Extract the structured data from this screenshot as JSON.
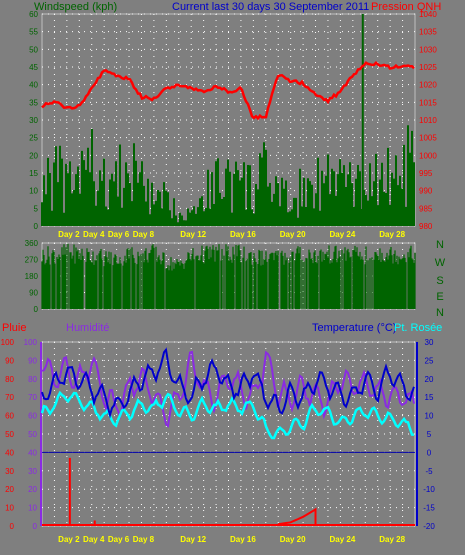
{
  "header": {
    "left_label": "Windspeed (kph)",
    "center_label": "Current last 30 days 30 September 2011",
    "right_label": "Pression QNH"
  },
  "lower_header": {
    "rain_label": "Pluie",
    "humidity_label": "Humidité",
    "temp_label": "Temperature (°C)",
    "dew_label": "Pt. Rosée"
  },
  "colors": {
    "background": "#7f7f7f",
    "wind": "#006400",
    "wind_direction": "#006400",
    "pressure": "#ff0000",
    "humidity": "#8a2be2",
    "temperature": "#0000cc",
    "dewpoint": "#00ffff",
    "rain": "#ff0000",
    "x_labels": "#ffff00",
    "grid": "#ffffff"
  },
  "chart_data": [
    {
      "type": "line",
      "name": "wind-pressure",
      "x_days": [
        0,
        1,
        2,
        3,
        4,
        5,
        6,
        7,
        8,
        9,
        10,
        11,
        12,
        13,
        14,
        15,
        16,
        17,
        18,
        19,
        20,
        21,
        22,
        23,
        24,
        25,
        26,
        27,
        28,
        29,
        30
      ],
      "x_tick_labels": [
        "Day 2",
        "Day 4",
        "Day 6",
        "Day 8",
        "Day 12",
        "Day 16",
        "Day 20",
        "Day 24",
        "Day 28"
      ],
      "x_tick_days": [
        2,
        4,
        6,
        8,
        12,
        16,
        20,
        24,
        28
      ],
      "left_axis": {
        "label": "Windspeed (kph)",
        "ylim": [
          0,
          60
        ],
        "ticks": [
          0,
          5,
          10,
          15,
          20,
          25,
          30,
          35,
          40,
          45,
          50,
          55,
          60
        ]
      },
      "right_axis": {
        "label": "Pression QNH",
        "ylim": [
          980,
          1040
        ],
        "ticks": [
          980,
          985,
          990,
          995,
          1000,
          1005,
          1010,
          1015,
          1020,
          1025,
          1030,
          1035,
          1040
        ]
      },
      "series": [
        {
          "kind": "wind_gust_bars",
          "axis": "left",
          "values": [
            22,
            27,
            18,
            25,
            30,
            20,
            24,
            22,
            29,
            10,
            13,
            6,
            9,
            15,
            22,
            23,
            20,
            18,
            25,
            15,
            12,
            18,
            24,
            22,
            25,
            17,
            20,
            25,
            22,
            28,
            30
          ]
        },
        {
          "kind": "pressure_line",
          "axis": "right",
          "values": [
            1014,
            1015,
            1013.5,
            1014,
            1019,
            1024,
            1022.5,
            1021.5,
            1016.5,
            1016,
            1019,
            1020,
            1019,
            1018,
            1019.5,
            1018,
            1019,
            1010.5,
            1011,
            1023,
            1021,
            1020.5,
            1017,
            1015.5,
            1018,
            1022.5,
            1026,
            1026,
            1025,
            1025,
            1025
          ]
        }
      ]
    },
    {
      "type": "bar",
      "name": "wind-direction",
      "y_ticks": [
        0,
        90,
        180,
        270,
        360
      ],
      "ylim": [
        0,
        360
      ],
      "direction_labels": [
        "N",
        "W",
        "S",
        "E",
        "N"
      ],
      "values": [
        340,
        350,
        360,
        350,
        340,
        330,
        320,
        350,
        340,
        360,
        300,
        280,
        340,
        350,
        360,
        355,
        350,
        340,
        320,
        330,
        350,
        360,
        340,
        350,
        345,
        350,
        340,
        360,
        350,
        345,
        350
      ]
    },
    {
      "type": "line",
      "name": "humidity-temp",
      "x_tick_labels": [
        "Day 2",
        "Day 4",
        "Day 6",
        "Day 8",
        "Day 12",
        "Day 16",
        "Day 20",
        "Day 24",
        "Day 28"
      ],
      "x_tick_days": [
        2,
        4,
        6,
        8,
        12,
        16,
        20,
        24,
        28
      ],
      "left_axis_rain": {
        "label": "Pluie",
        "ylim": [
          0,
          100
        ],
        "ticks": [
          0,
          10,
          20,
          30,
          40,
          50,
          60,
          70,
          80,
          90,
          100
        ]
      },
      "left_axis_humidity": {
        "label": "Humidité",
        "ylim": [
          0,
          100
        ],
        "ticks": [
          0,
          10,
          20,
          30,
          40,
          50,
          60,
          70,
          80,
          90,
          100
        ]
      },
      "right_axis": {
        "label": "Temperature (°C)",
        "ylim": [
          -20,
          30
        ],
        "ticks": [
          -20,
          -15,
          -10,
          -5,
          0,
          5,
          10,
          15,
          20,
          25,
          30
        ]
      },
      "zero_line": 0,
      "series": [
        {
          "name": "Humidité",
          "axis": "humidity",
          "values": [
            88,
            80,
            85,
            78,
            90,
            70,
            65,
            75,
            80,
            72,
            60,
            70,
            88,
            75,
            70,
            82,
            75,
            68,
            92,
            72,
            70,
            75,
            70,
            68,
            80,
            75,
            78,
            73,
            72,
            70,
            65
          ]
        },
        {
          "name": "Temperature (°C)",
          "axis": "temp",
          "values": [
            15,
            18,
            22,
            20,
            17,
            15,
            12,
            16,
            20,
            22,
            25,
            18,
            15,
            20,
            23,
            18,
            17,
            22,
            15,
            12,
            16,
            15,
            20,
            18,
            16,
            15,
            20,
            17,
            22,
            18,
            16
          ]
        },
        {
          "name": "Pt. Rosée",
          "axis": "temp",
          "values": [
            10,
            13,
            16,
            14,
            12,
            10,
            9,
            11,
            13,
            12,
            15,
            11,
            10,
            13,
            12,
            13,
            12,
            13,
            6,
            5,
            7,
            8,
            12,
            11,
            8,
            10,
            11,
            10,
            9,
            8,
            6
          ]
        },
        {
          "name": "Pluie",
          "axis": "rain",
          "values": [
            0,
            1,
            37,
            1,
            3,
            0,
            0,
            0,
            0,
            0,
            0,
            0,
            0,
            0,
            0,
            0,
            0,
            0,
            0,
            0,
            0,
            0,
            0,
            0,
            0,
            0,
            0,
            0,
            0,
            0,
            0
          ]
        },
        {
          "name": "Pluie cumul",
          "axis": "rain",
          "values": [
            0,
            0,
            0,
            0,
            0,
            0,
            0,
            0,
            0,
            0,
            0,
            0,
            0,
            0,
            0,
            0,
            0,
            0,
            0,
            1,
            2,
            5,
            9,
            0,
            0,
            0,
            0,
            0,
            0,
            0,
            0
          ]
        }
      ]
    }
  ]
}
